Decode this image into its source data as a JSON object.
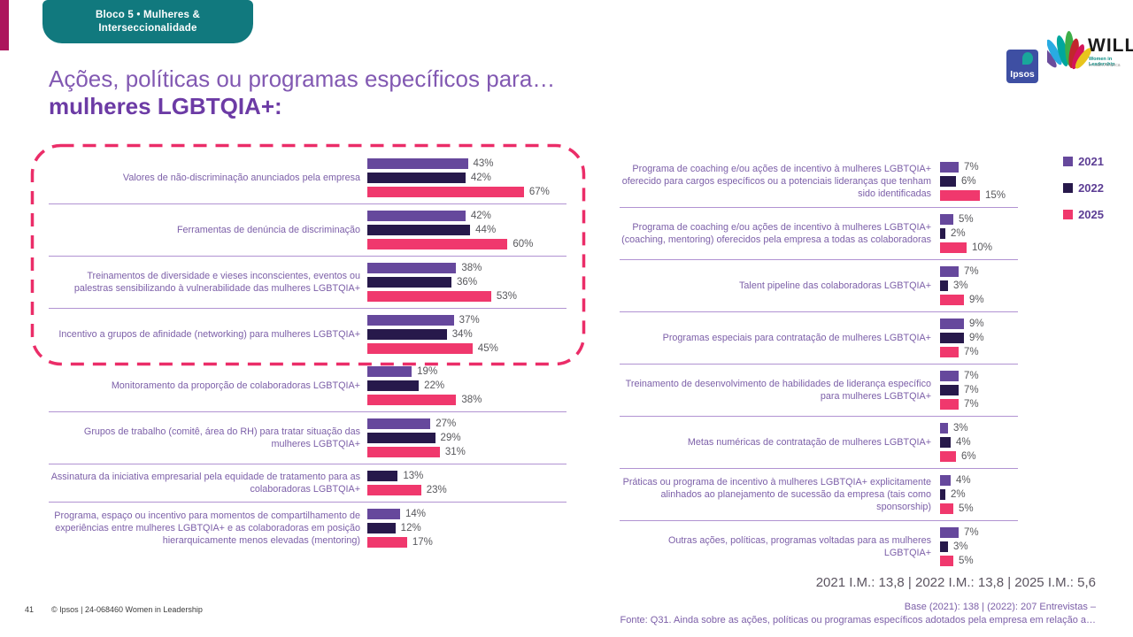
{
  "slide": {
    "badge_line1": "Bloco 5 • Mulheres &",
    "badge_line2": "Interseccionalidade",
    "title_line1": "Ações, políticas ou programas específicos para…",
    "title_line2": "mulheres LGBTQIA+:",
    "im_summary": "2021 I.M.: 13,8 | 2022 I.M.: 13,8 | 2025 I.M.: 5,6",
    "base_note": "Base (2021): 138 | (2022): 207 Entrevistas –",
    "fonte_note": "Fonte: Q31. Ainda sobre as ações, políticas ou programas específicos adotados pela empresa em relação a…",
    "page_number": "41",
    "copyright": "© Ipsos | 24-068460 Women in Leadership"
  },
  "logos": {
    "ipsos_text": "Ipsos",
    "will_text": "WILL",
    "will_sub1": "Women in Leadership",
    "will_sub2": "in Latin America"
  },
  "legend": {
    "items": [
      {
        "label": "2021",
        "color": "#66489C"
      },
      {
        "label": "2022",
        "color": "#27194B"
      },
      {
        "label": "2025",
        "color": "#F0386D"
      }
    ]
  },
  "chart_data": {
    "type": "bar",
    "orientation": "horizontal",
    "unit": "%",
    "series_names": [
      "2021",
      "2022",
      "2025"
    ],
    "series_colors": [
      "#66489C",
      "#27194B",
      "#F0386D"
    ],
    "highlight": "first four categories of left panel outlined with pink dashed rounded box",
    "panels": [
      {
        "id": "left",
        "categories": [
          "Valores de não-discriminação anunciados pela empresa",
          "Ferramentas de denúncia de discriminação",
          "Treinamentos de diversidade e vieses inconscientes, eventos ou palestras sensibilizando à vulnerabilidade das mulheres LGBTQIA+",
          "Incentivo a grupos de afinidade (networking) para mulheres LGBTQIA+",
          "Monitoramento da proporção de colaboradoras LGBTQIA+",
          "Grupos de trabalho (comitê, área do RH) para tratar situação das mulheres LGBTQIA+",
          "Assinatura da iniciativa empresarial pela equidade de tratamento para as colaboradoras LGBTQIA+",
          "Programa, espaço ou incentivo para momentos de compartilhamento de experiências entre mulheres LGBTQIA+ e as colaboradoras em posição hierarquicamente menos elevadas (mentoring)"
        ],
        "series": [
          {
            "name": "2021",
            "values": [
              43,
              42,
              38,
              37,
              19,
              27,
              null,
              14
            ]
          },
          {
            "name": "2022",
            "values": [
              42,
              44,
              36,
              34,
              22,
              29,
              13,
              12
            ]
          },
          {
            "name": "2025",
            "values": [
              67,
              60,
              53,
              45,
              38,
              31,
              23,
              17
            ]
          }
        ]
      },
      {
        "id": "right",
        "categories": [
          "Programa de coaching e/ou ações de incentivo à mulheres LGBTQIA+ oferecido para cargos específicos ou a potenciais lideranças que tenham sido identificadas",
          "Programa de coaching e/ou ações de incentivo à mulheres LGBTQIA+ (coaching, mentoring) oferecidos pela empresa a todas as colaboradoras",
          "Talent pipeline das colaboradoras LGBTQIA+",
          "Programas especiais para contratação de mulheres LGBTQIA+",
          "Treinamento de desenvolvimento de habilidades de liderança específico para mulheres LGBTQIA+",
          "Metas numéricas de contratação de mulheres LGBTQIA+",
          "Práticas ou programa de incentivo à mulheres LGBTQIA+ explicitamente alinhados ao planejamento de sucessão da empresa (tais como sponsorship)",
          "Outras ações, políticas, programas voltadas para as mulheres LGBTQIA+"
        ],
        "series": [
          {
            "name": "2021",
            "values": [
              7,
              5,
              7,
              9,
              7,
              3,
              4,
              7
            ]
          },
          {
            "name": "2022",
            "values": [
              6,
              2,
              3,
              9,
              7,
              4,
              2,
              3
            ]
          },
          {
            "name": "2025",
            "values": [
              15,
              10,
              9,
              7,
              7,
              6,
              5,
              5
            ]
          }
        ]
      }
    ]
  }
}
